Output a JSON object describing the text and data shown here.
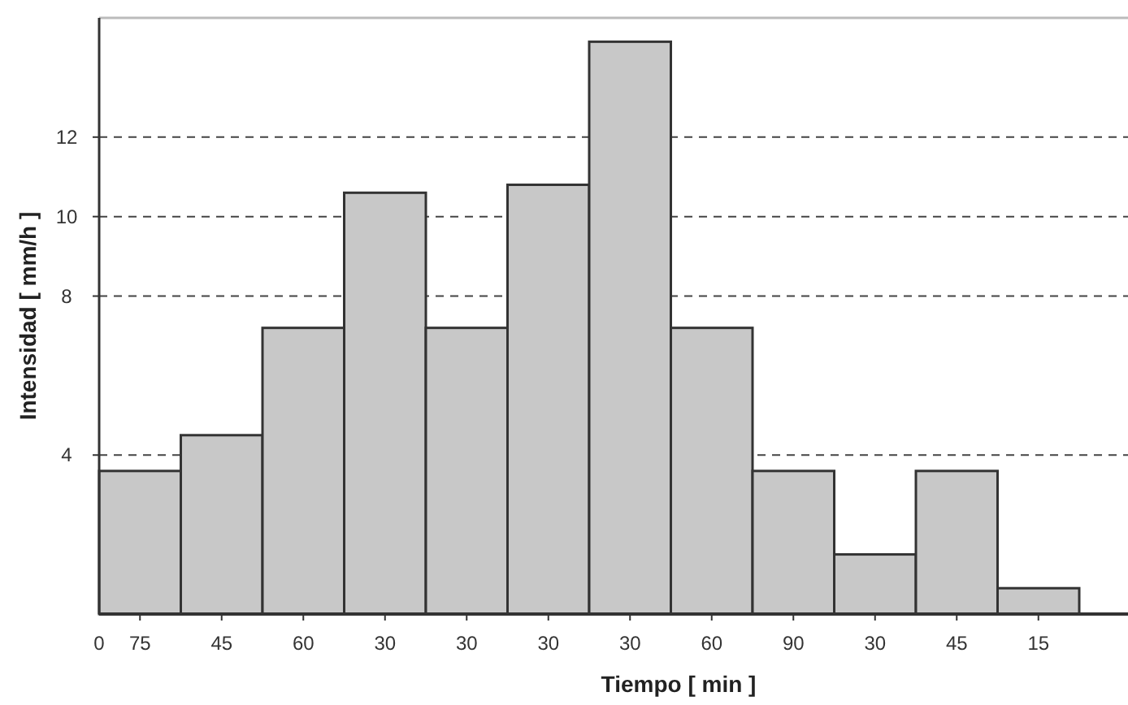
{
  "chart_data": {
    "type": "bar",
    "xlabel": "Tiempo [ min ]",
    "ylabel": "Intensidad [ mm/h ]",
    "categories": [
      "75",
      "45",
      "60",
      "30",
      "30",
      "30",
      "30",
      "60",
      "90",
      "30",
      "45",
      "15"
    ],
    "values": [
      3.6,
      4.5,
      7.2,
      10.6,
      7.2,
      10.8,
      14.4,
      7.2,
      3.6,
      1.5,
      3.6,
      0.65
    ],
    "color": "#c8c8c8",
    "annotations": [
      "0"
    ],
    "ylim": [
      0,
      15
    ],
    "yticks": [
      4,
      8,
      10,
      12
    ],
    "grid": "y"
  }
}
